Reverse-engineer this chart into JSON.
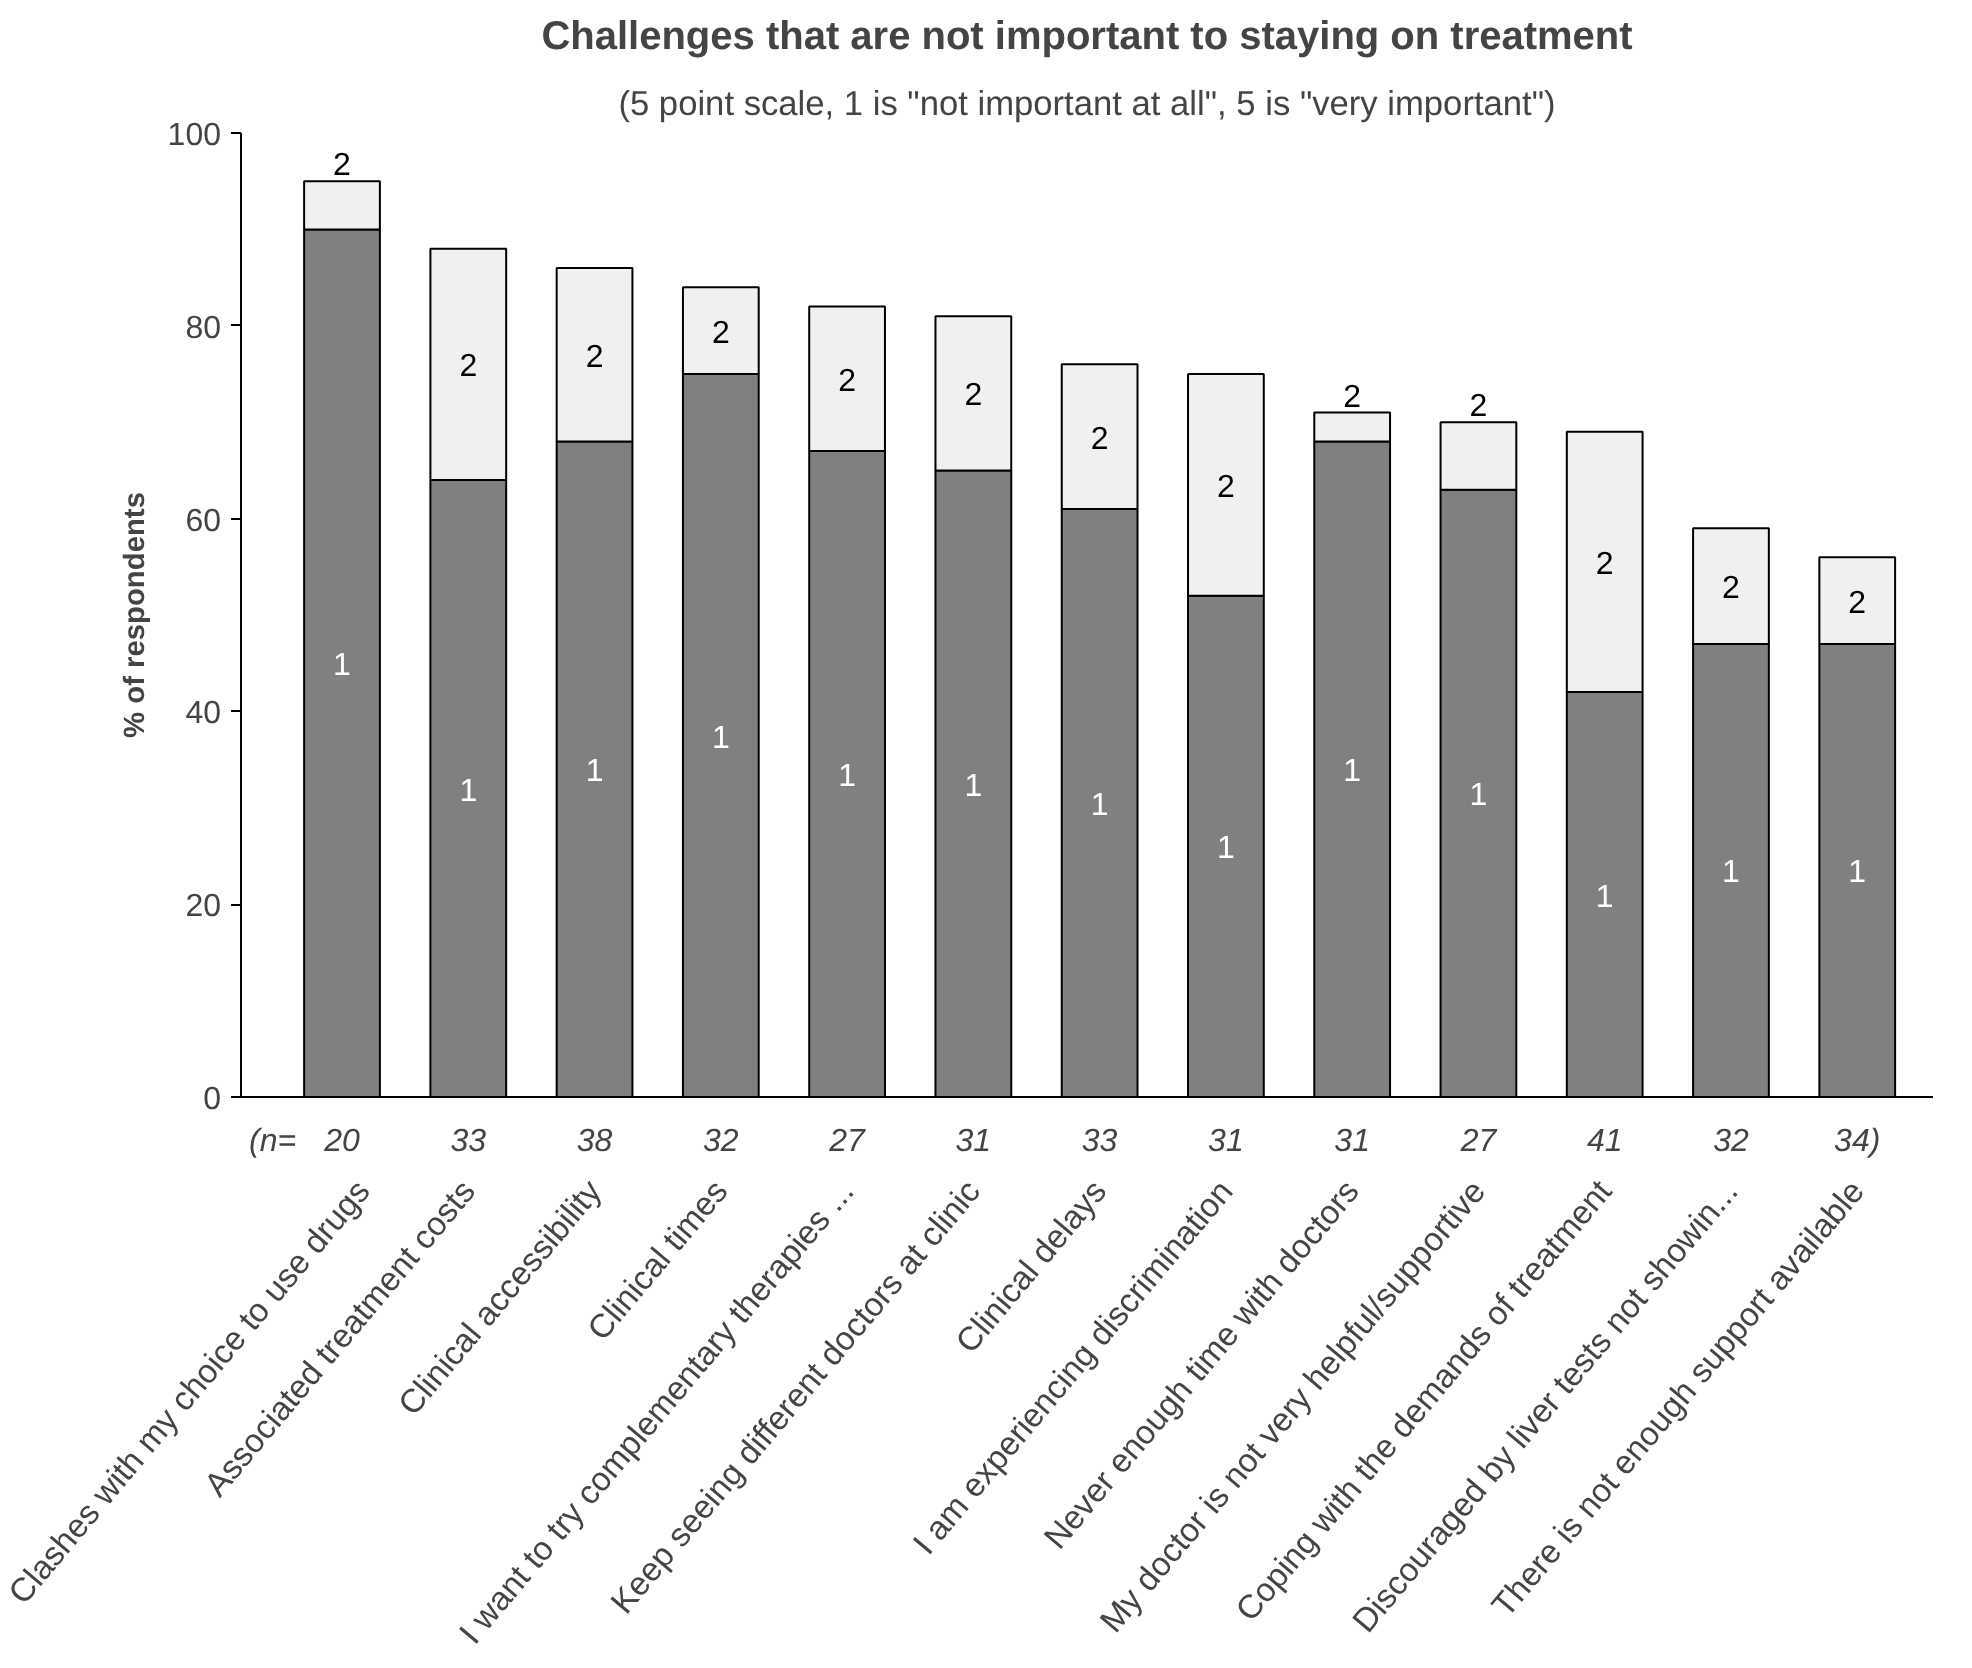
{
  "chart_data": {
    "type": "bar",
    "stacked": true,
    "title": "Challenges that are not important to staying on treatment",
    "subtitle": "(5 point scale, 1 is \"not important at all\", 5 is \"very important\")",
    "ylabel": "% of respondents",
    "categories": [
      "Clashes with my choice to use drugs",
      "Associated treatment costs",
      "Clinical accessibility",
      "Clinical times",
      "I want to try complementary therapies ...",
      "Keep seeing different doctors at clinic",
      "Clinical delays",
      "I am experiencing discrimination",
      "Never enough time with doctors",
      "My doctor is not very helpful/supportive",
      "Coping with the demands of treatment",
      "Discouraged by liver tests not showin...",
      "There is not enough support available"
    ],
    "series": [
      {
        "name": "1",
        "color": "#808080",
        "values": [
          90,
          64,
          68,
          75,
          67,
          65,
          61,
          52,
          68,
          63,
          42,
          47,
          47
        ]
      },
      {
        "name": "2",
        "color": "#f0f0f0",
        "values": [
          5,
          24,
          18,
          9,
          15,
          16,
          15,
          23,
          3,
          7,
          27,
          12,
          9
        ]
      }
    ],
    "ylim": [
      0,
      100
    ],
    "yticks": [
      0,
      20,
      40,
      60,
      80,
      100
    ],
    "grid": false,
    "legend": false,
    "annotations": [
      "(n=",
      "20",
      "33",
      "38",
      "32",
      "27",
      "31",
      "33",
      "31",
      "31",
      "27",
      "41",
      "32",
      "34)"
    ]
  }
}
